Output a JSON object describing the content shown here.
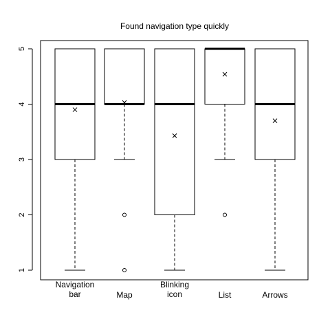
{
  "chart_data": {
    "type": "box",
    "title": "Found navigation type quickly",
    "xlabel": "",
    "ylabel": "",
    "ylim": [
      1,
      5
    ],
    "yticks": [
      1,
      2,
      3,
      4,
      5
    ],
    "grid": false,
    "legend": "none",
    "categories": [
      {
        "label_lines": [
          "Navigation",
          "bar"
        ],
        "min": 1,
        "q1": 3,
        "median": 4,
        "q3": 5,
        "max": 5,
        "mean": 3.9,
        "outliers": []
      },
      {
        "label_lines": [
          "Map"
        ],
        "min": 3,
        "q1": 4,
        "median": 4,
        "q3": 5,
        "max": 5,
        "mean": 4.03,
        "outliers": [
          2,
          1
        ]
      },
      {
        "label_lines": [
          "Blinking",
          "icon"
        ],
        "min": 1,
        "q1": 2,
        "median": 4,
        "q3": 5,
        "max": 5,
        "mean": 3.43,
        "outliers": []
      },
      {
        "label_lines": [
          "List"
        ],
        "min": 3,
        "q1": 4,
        "median": 5,
        "q3": 5,
        "max": 5,
        "mean": 4.54,
        "outliers": [
          2
        ]
      },
      {
        "label_lines": [
          "Arrows"
        ],
        "min": 1,
        "q1": 3,
        "median": 4,
        "q3": 5,
        "max": 5,
        "mean": 3.7,
        "outliers": []
      }
    ]
  }
}
